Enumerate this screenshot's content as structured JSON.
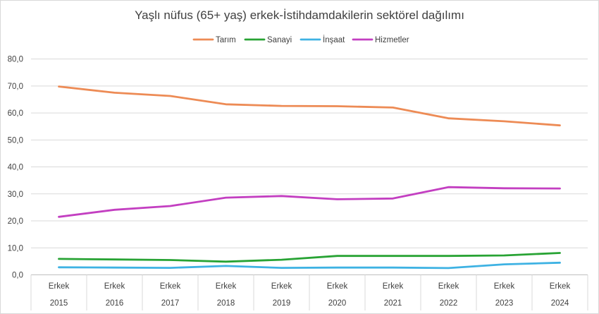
{
  "chart_data": {
    "type": "line",
    "title": "Yaşlı nüfus (65+ yaş) erkek-İstihdamdakilerin sektörel dağılımı",
    "xlabel": "",
    "ylabel": "",
    "categories": [
      {
        "group": "Erkek",
        "year": "2015"
      },
      {
        "group": "Erkek",
        "year": "2016"
      },
      {
        "group": "Erkek",
        "year": "2017"
      },
      {
        "group": "Erkek",
        "year": "2018"
      },
      {
        "group": "Erkek",
        "year": "2019"
      },
      {
        "group": "Erkek",
        "year": "2020"
      },
      {
        "group": "Erkek",
        "year": "2021"
      },
      {
        "group": "Erkek",
        "year": "2022"
      },
      {
        "group": "Erkek",
        "year": "2023"
      },
      {
        "group": "Erkek",
        "year": "2024"
      }
    ],
    "ylim": [
      0,
      80
    ],
    "yticks": [
      "0,0",
      "10,0",
      "20,0",
      "30,0",
      "40,0",
      "50,0",
      "60,0",
      "70,0",
      "80,0"
    ],
    "grid": true,
    "legend_position": "top",
    "series": [
      {
        "name": "Tarım",
        "color": "#ED8B55",
        "values": [
          69.8,
          67.5,
          66.3,
          63.2,
          62.6,
          62.5,
          62.0,
          58.0,
          56.9,
          55.4
        ]
      },
      {
        "name": "Sanayi",
        "color": "#28A334",
        "values": [
          5.9,
          5.7,
          5.5,
          4.9,
          5.6,
          7.0,
          7.0,
          7.0,
          7.2,
          8.1
        ]
      },
      {
        "name": "İnşaat",
        "color": "#3EB2E3",
        "values": [
          2.8,
          2.7,
          2.6,
          3.3,
          2.6,
          2.7,
          2.7,
          2.5,
          3.9,
          4.5
        ]
      },
      {
        "name": "Hizmetler",
        "color": "#C33FC1",
        "values": [
          21.5,
          24.1,
          25.5,
          28.6,
          29.2,
          28.0,
          28.3,
          32.5,
          32.1,
          32.0
        ]
      }
    ]
  }
}
